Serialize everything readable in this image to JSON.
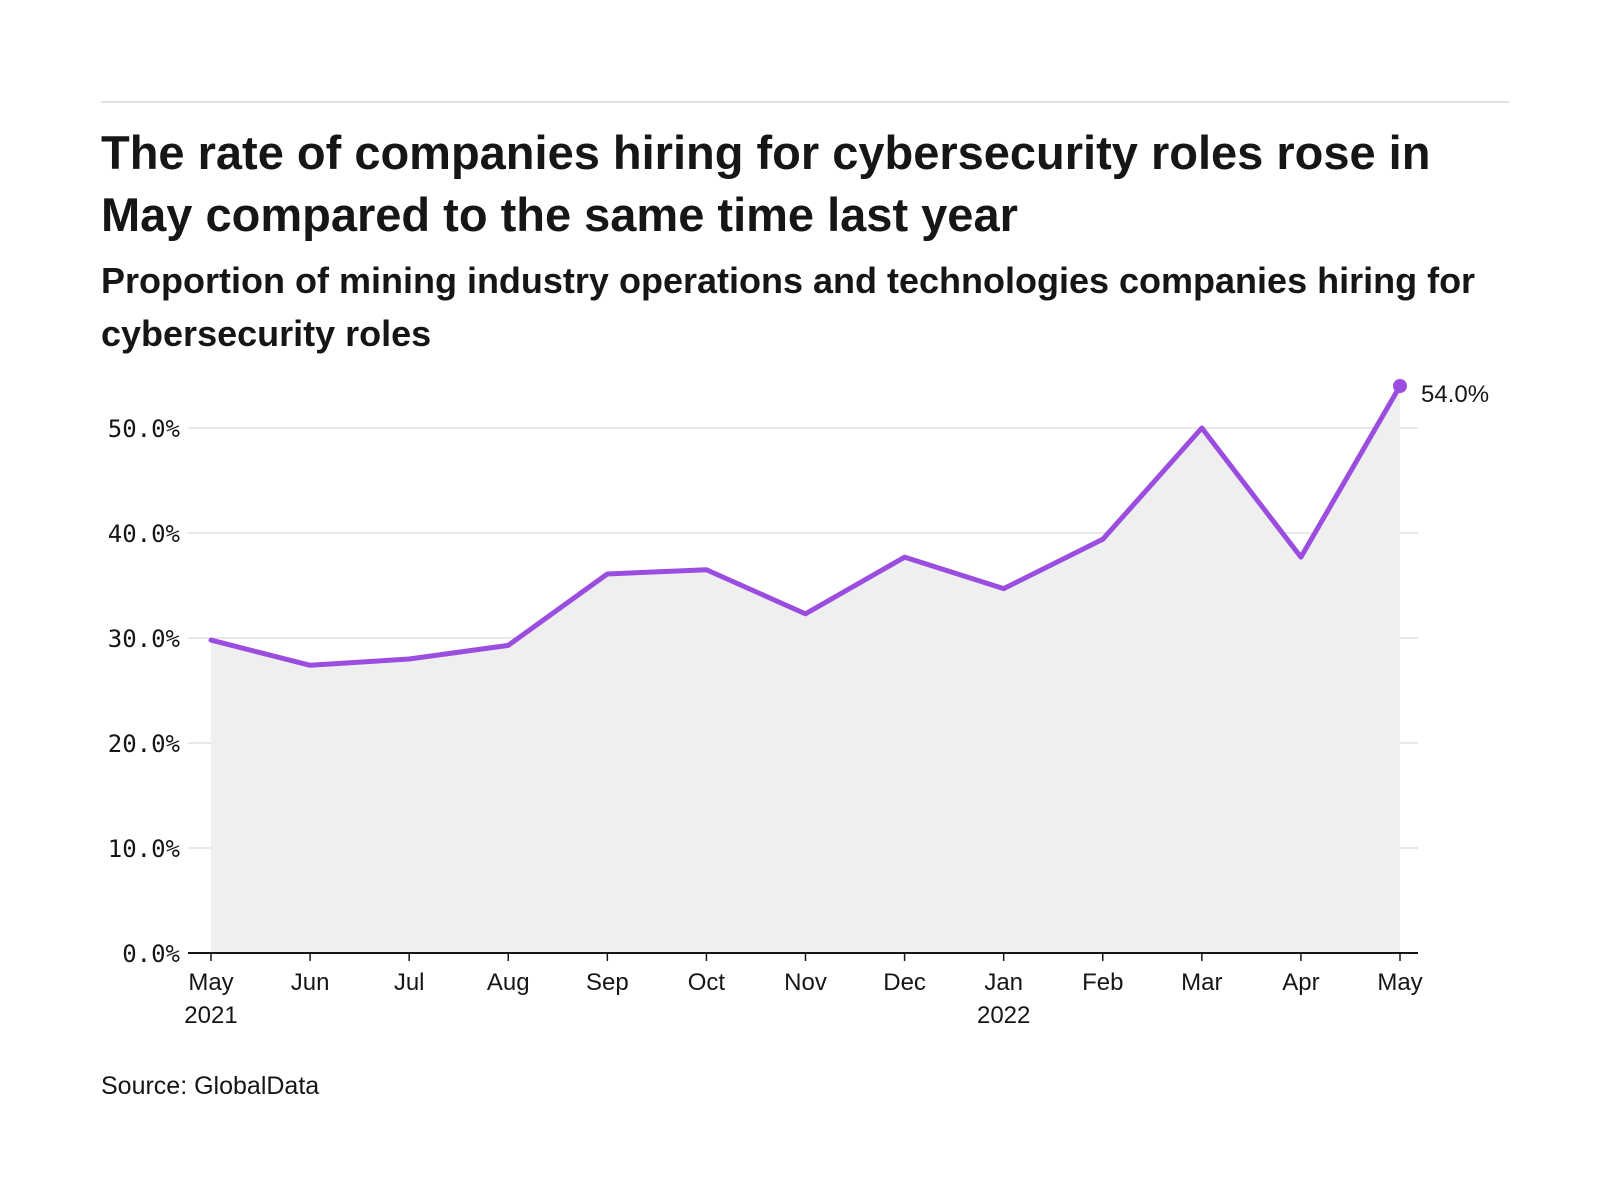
{
  "title": "The rate of companies hiring for cybersecurity roles rose in May compared to the same time last year",
  "subtitle": "Proportion of mining industry operations and technologies companies hiring for cybersecurity roles",
  "source": "Source: GlobalData",
  "colors": {
    "line": "#9b4de0",
    "area": "#efefef",
    "grid": "#e0e0e0",
    "text": "#161616"
  },
  "chart_data": {
    "type": "area",
    "title": "The rate of companies hiring for cybersecurity roles rose in May compared to the same time last year",
    "xlabel": "",
    "ylabel": "",
    "categories": [
      "May",
      "Jun",
      "Jul",
      "Aug",
      "Sep",
      "Oct",
      "Nov",
      "Dec",
      "Jan",
      "Feb",
      "Mar",
      "Apr",
      "May"
    ],
    "year_labels": [
      "2021",
      "",
      "",
      "",
      "",
      "",
      "",
      "",
      "2022",
      "",
      "",
      "",
      ""
    ],
    "series": [
      {
        "name": "Companies hiring for cybersecurity roles",
        "values": [
          29.8,
          27.4,
          28.0,
          29.3,
          36.1,
          36.5,
          32.3,
          37.7,
          34.7,
          39.4,
          50.0,
          37.7,
          54.0
        ]
      }
    ],
    "ylim": [
      0,
      55
    ],
    "yticks": [
      0,
      10,
      20,
      30,
      40,
      50
    ],
    "ytick_labels": [
      "0.0%",
      "10.0%",
      "20.0%",
      "30.0%",
      "40.0%",
      "50.0%"
    ],
    "last_point_label": "54.0%",
    "grid": true
  }
}
